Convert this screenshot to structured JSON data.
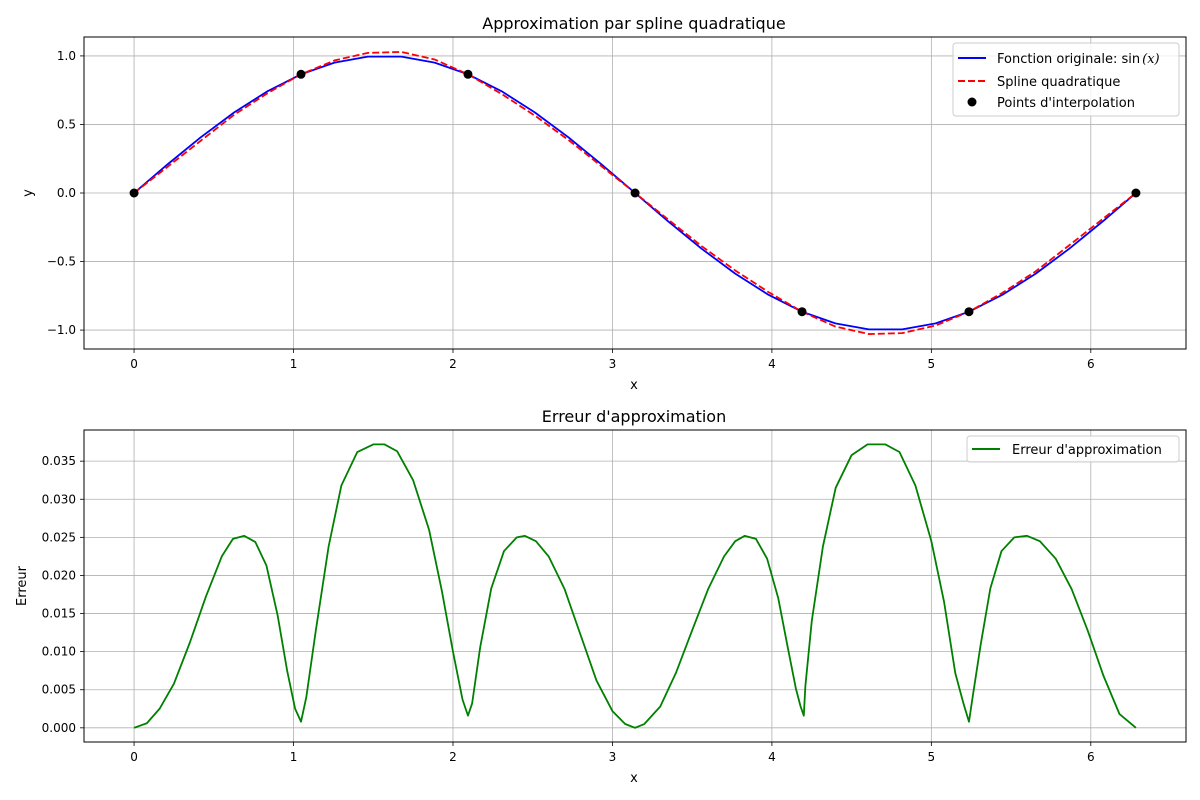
{
  "chart_data": [
    {
      "type": "line",
      "title": "Approximation par spline quadratique",
      "xlabel": "x",
      "ylabel": "y",
      "xlim": [
        -0.314,
        6.597
      ],
      "ylim": [
        -1.138,
        1.138
      ],
      "xticks": [
        0,
        1,
        2,
        3,
        4,
        5,
        6
      ],
      "xtick_labels": [
        "0",
        "1",
        "2",
        "3",
        "4",
        "5",
        "6"
      ],
      "yticks": [
        -1.0,
        -0.5,
        0.0,
        0.5,
        1.0
      ],
      "ytick_labels": [
        "−1.0",
        "−0.5",
        "0.0",
        "0.5",
        "1.0"
      ],
      "grid": true,
      "legend_position": "top-right",
      "series": [
        {
          "name": "Fonction originale: sin(x)",
          "name_main": "Fonction originale: sin",
          "name_math": "(x)",
          "style": "solid",
          "color": "#0000ff",
          "x": [
            0,
            0.209,
            0.419,
            0.628,
            0.838,
            1.047,
            1.257,
            1.466,
            1.676,
            1.885,
            2.094,
            2.304,
            2.513,
            2.723,
            2.932,
            3.142,
            3.351,
            3.56,
            3.77,
            3.979,
            4.189,
            4.398,
            4.608,
            4.817,
            5.027,
            5.236,
            5.445,
            5.655,
            5.864,
            6.074,
            6.283
          ],
          "y": [
            0.0,
            0.208,
            0.407,
            0.588,
            0.743,
            0.866,
            0.951,
            0.995,
            0.995,
            0.951,
            0.866,
            0.743,
            0.588,
            0.407,
            0.208,
            0.0,
            -0.208,
            -0.407,
            -0.588,
            -0.743,
            -0.866,
            -0.951,
            -0.995,
            -0.995,
            -0.951,
            -0.866,
            -0.743,
            -0.588,
            -0.407,
            -0.208,
            0.0
          ]
        },
        {
          "name": "Spline quadratique",
          "style": "dashed",
          "color": "#ff0000",
          "x": [
            0,
            0.209,
            0.419,
            0.628,
            0.838,
            1.047,
            1.257,
            1.466,
            1.676,
            1.885,
            2.094,
            2.304,
            2.513,
            2.723,
            2.932,
            3.142,
            3.351,
            3.56,
            3.77,
            3.979,
            4.189,
            4.398,
            4.608,
            4.817,
            5.027,
            5.236,
            5.445,
            5.655,
            5.864,
            6.074,
            6.283
          ],
          "y": [
            0.0,
            0.19,
            0.382,
            0.571,
            0.729,
            0.866,
            0.967,
            1.022,
            1.029,
            0.974,
            0.866,
            0.723,
            0.565,
            0.388,
            0.195,
            0.0,
            -0.195,
            -0.388,
            -0.565,
            -0.723,
            -0.866,
            -0.974,
            -1.029,
            -1.022,
            -0.967,
            -0.866,
            -0.729,
            -0.571,
            -0.382,
            -0.19,
            0.0
          ]
        },
        {
          "name": "Points d'interpolation",
          "style": "markers",
          "color": "#000000",
          "x": [
            0,
            1.047,
            2.094,
            3.142,
            4.189,
            5.236,
            6.283
          ],
          "y": [
            0.0,
            0.866,
            0.866,
            0.0,
            -0.866,
            -0.866,
            0.0
          ]
        }
      ]
    },
    {
      "type": "line",
      "title": "Erreur d'approximation",
      "xlabel": "x",
      "ylabel": "Erreur",
      "xlim": [
        -0.314,
        6.597
      ],
      "ylim": [
        -0.00186,
        0.03909
      ],
      "xticks": [
        0,
        1,
        2,
        3,
        4,
        5,
        6
      ],
      "xtick_labels": [
        "0",
        "1",
        "2",
        "3",
        "4",
        "5",
        "6"
      ],
      "yticks": [
        0.0,
        0.005,
        0.01,
        0.015,
        0.02,
        0.025,
        0.03,
        0.035
      ],
      "ytick_labels": [
        "0.000",
        "0.005",
        "0.010",
        "0.015",
        "0.020",
        "0.025",
        "0.030",
        "0.035"
      ],
      "grid": true,
      "legend_position": "top-right",
      "series": [
        {
          "name": "Erreur d'approximation",
          "style": "solid",
          "color": "#008000",
          "x": [
            0,
            0.08,
            0.16,
            0.25,
            0.35,
            0.45,
            0.55,
            0.62,
            0.69,
            0.76,
            0.83,
            0.9,
            0.96,
            1.01,
            1.047,
            1.08,
            1.14,
            1.22,
            1.3,
            1.4,
            1.5,
            1.571,
            1.65,
            1.75,
            1.85,
            1.93,
            2.0,
            2.06,
            2.094,
            2.12,
            2.17,
            2.24,
            2.32,
            2.4,
            2.45,
            2.52,
            2.6,
            2.7,
            2.8,
            2.9,
            3.0,
            3.08,
            3.142,
            3.2,
            3.3,
            3.4,
            3.5,
            3.6,
            3.7,
            3.77,
            3.83,
            3.9,
            3.97,
            4.04,
            4.1,
            4.15,
            4.18,
            4.2,
            4.21,
            4.25,
            4.32,
            4.4,
            4.5,
            4.6,
            4.7,
            4.712,
            4.8,
            4.9,
            5.0,
            5.08,
            5.15,
            5.2,
            5.236,
            5.26,
            5.31,
            5.37,
            5.44,
            5.52,
            5.6,
            5.68,
            5.78,
            5.88,
            5.98,
            6.08,
            6.18,
            6.283
          ],
          "y": [
            0.0,
            0.0006,
            0.0025,
            0.0058,
            0.0112,
            0.0172,
            0.0225,
            0.0248,
            0.0252,
            0.0244,
            0.0213,
            0.0148,
            0.0075,
            0.0025,
            0.0008,
            0.004,
            0.0128,
            0.0238,
            0.0318,
            0.0362,
            0.0372,
            0.0372,
            0.0363,
            0.0325,
            0.026,
            0.018,
            0.01,
            0.0037,
            0.0016,
            0.0032,
            0.0105,
            0.0183,
            0.0232,
            0.025,
            0.0252,
            0.0245,
            0.0225,
            0.0182,
            0.0122,
            0.0062,
            0.0022,
            0.0005,
            0.0,
            0.0005,
            0.0028,
            0.0073,
            0.0128,
            0.0182,
            0.0225,
            0.0245,
            0.0252,
            0.0248,
            0.0222,
            0.017,
            0.0105,
            0.0052,
            0.0028,
            0.0016,
            0.0055,
            0.014,
            0.0238,
            0.0315,
            0.0358,
            0.0372,
            0.0372,
            0.0372,
            0.0362,
            0.0318,
            0.0245,
            0.0165,
            0.0072,
            0.0033,
            0.0008,
            0.0042,
            0.011,
            0.0183,
            0.0232,
            0.025,
            0.0252,
            0.0245,
            0.0222,
            0.0182,
            0.0128,
            0.0068,
            0.0018,
            0.0
          ]
        }
      ]
    }
  ]
}
